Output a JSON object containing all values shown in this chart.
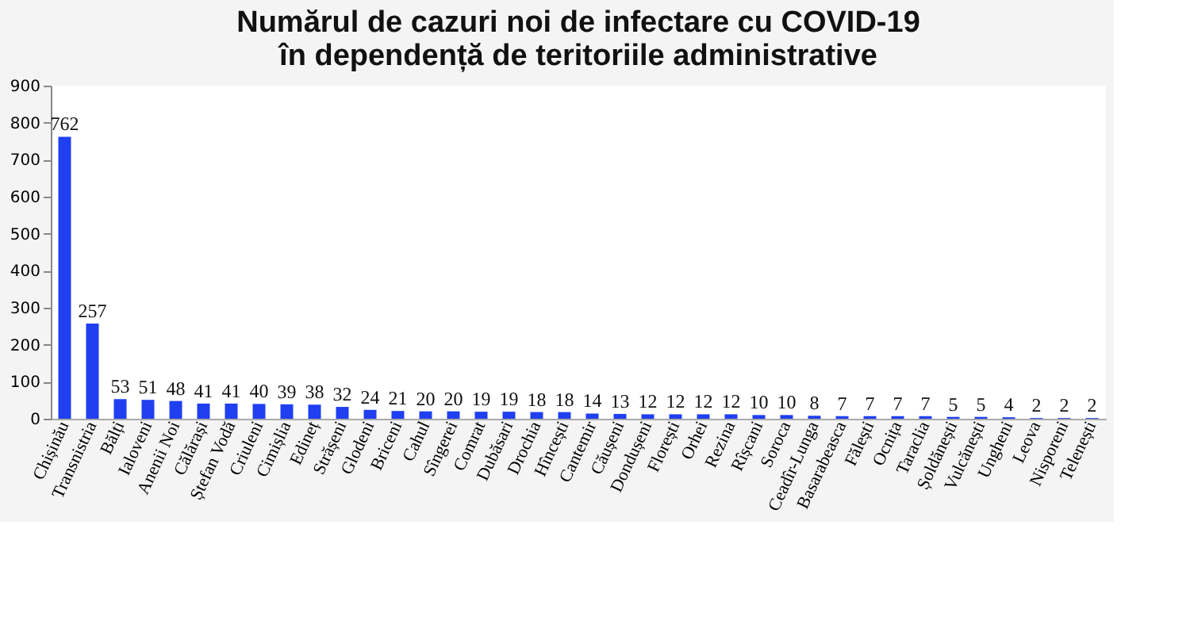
{
  "chart_data": {
    "type": "bar",
    "title": "Numărul de cazuri noi de infectare cu COVID-19\nîn dependență de teritoriile administrative",
    "categories": [
      "Chișinău",
      "Transnistria",
      "Bălți",
      "Ialoveni",
      "Anenii Noi",
      "Călărași",
      "Ștefan Vodă",
      "Criuleni",
      "Cimișlia",
      "Edineț",
      "Strășeni",
      "Glodeni",
      "Briceni",
      "Cahul",
      "Sîngerei",
      "Comrat",
      "Dubăsari",
      "Drochia",
      "Hîncești",
      "Cantemir",
      "Căușeni",
      "Dondușeni",
      "Florești",
      "Orhei",
      "Rezina",
      "Rîșcani",
      "Soroca",
      "Ceadîr-Lunga",
      "Basarabeasca",
      "Fălești",
      "Ocnița",
      "Taraclia",
      "Șoldănești",
      "Vulcănești",
      "Ungheni",
      "Leova",
      "Nisporeni",
      "Telenești"
    ],
    "values": [
      762,
      257,
      53,
      51,
      48,
      41,
      41,
      40,
      39,
      38,
      32,
      24,
      21,
      20,
      20,
      19,
      19,
      18,
      18,
      14,
      13,
      12,
      12,
      12,
      12,
      10,
      10,
      8,
      7,
      7,
      7,
      7,
      5,
      5,
      4,
      2,
      2,
      2
    ],
    "color": "#1f3ff0",
    "ylim": [
      0,
      900
    ],
    "yticks": [
      0,
      100,
      200,
      300,
      400,
      500,
      600,
      700,
      800,
      900
    ],
    "grid": false,
    "data_labels": true
  }
}
